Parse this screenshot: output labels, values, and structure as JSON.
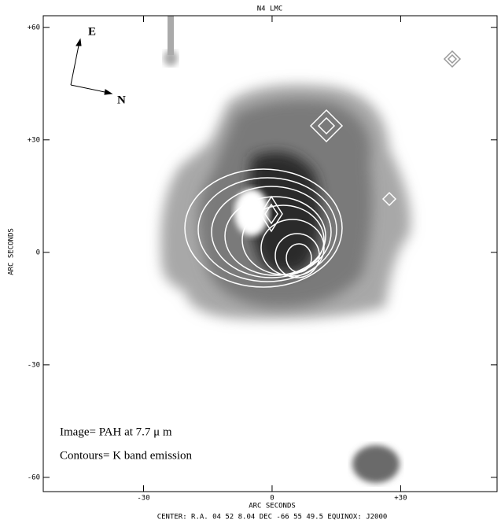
{
  "chart_data": {
    "type": "image",
    "title": "N4 LMC",
    "xlabel": "ARC SECONDS",
    "ylabel": "ARC SECONDS",
    "footer": "CENTER: R.A. 04 52  8.04 DEC -66 55 49.5  EQUINOX: J2000",
    "annotations": [
      "E",
      "N",
      "Image= PAH at 7.7 μ m",
      "Contours=  K band emission"
    ],
    "xlim": [
      -53.4,
      52.5
    ],
    "ylim": [
      -63.8,
      63.1
    ],
    "xticks": [
      -30,
      0,
      {
        "value": 30,
        "label": "+30"
      }
    ],
    "yticks": [
      -60,
      -30,
      0,
      {
        "value": 30,
        "label": "+30"
      },
      {
        "value": 60,
        "label": "+60"
      }
    ]
  }
}
